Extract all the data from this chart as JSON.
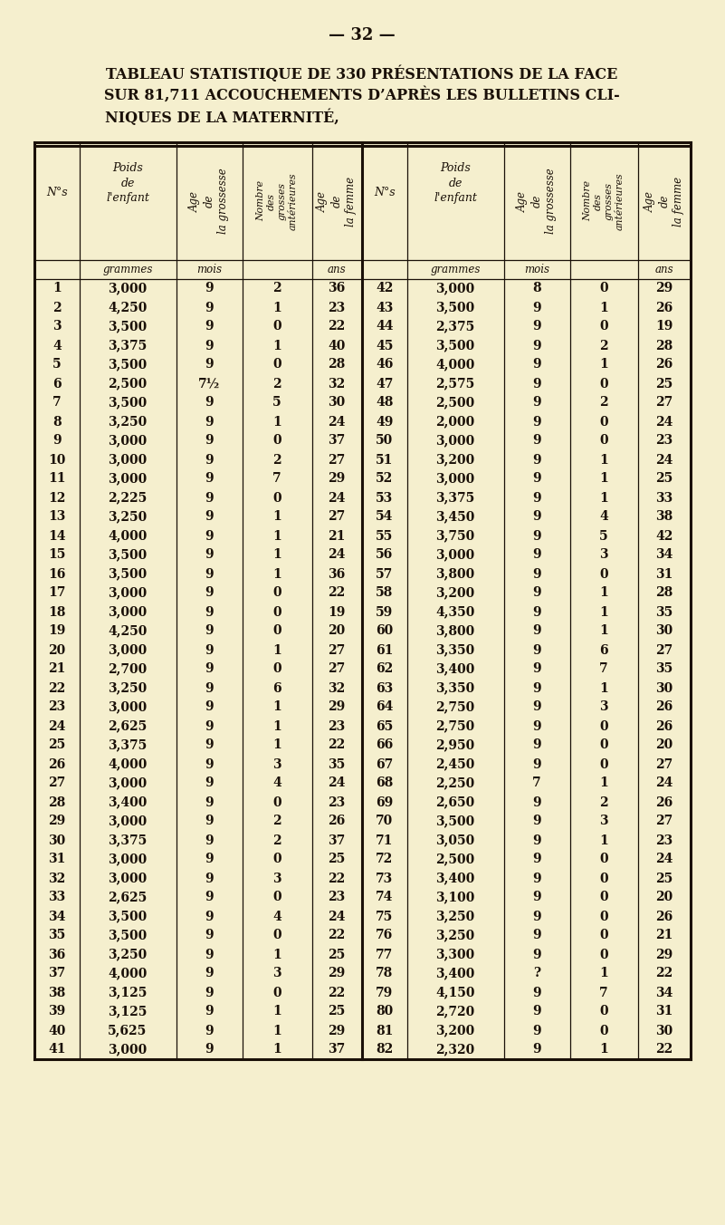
{
  "page_number": "32",
  "title_line1": "TABLEAU STATISTIQUE DE 330 PRÉSENTATIONS DE LA FACE",
  "title_line2": "SUR 81,711 ACCOUCHEMENTS D’APRÈS LES BULLETINS CLI-",
  "title_line3": "NIQUES DE LA MATERNITÉ,",
  "rows": [
    [
      1,
      "3,000",
      "9",
      "2",
      "36",
      42,
      "3,000",
      "8",
      "0",
      "29"
    ],
    [
      2,
      "4,250",
      "9",
      "1",
      "23",
      43,
      "3,500",
      "9",
      "1",
      "26"
    ],
    [
      3,
      "3,500",
      "9",
      "0",
      "22",
      44,
      "2,375",
      "9",
      "0",
      "19"
    ],
    [
      4,
      "3,375",
      "9",
      "1",
      "40",
      45,
      "3,500",
      "9",
      "2",
      "28"
    ],
    [
      5,
      "3,500",
      "9",
      "0",
      "28",
      46,
      "4,000",
      "9",
      "1",
      "26"
    ],
    [
      6,
      "2,500",
      "7½",
      "2",
      "32",
      47,
      "2,575",
      "9",
      "0",
      "25"
    ],
    [
      7,
      "3,500",
      "9",
      "5",
      "30",
      48,
      "2,500",
      "9",
      "2",
      "27"
    ],
    [
      8,
      "3,250",
      "9",
      "1",
      "24",
      49,
      "2,000",
      "9",
      "0",
      "24"
    ],
    [
      9,
      "3,000",
      "9",
      "0",
      "37",
      50,
      "3,000",
      "9",
      "0",
      "23"
    ],
    [
      10,
      "3,000",
      "9",
      "2",
      "27",
      51,
      "3,200",
      "9",
      "1",
      "24"
    ],
    [
      11,
      "3,000",
      "9",
      "7",
      "29",
      52,
      "3,000",
      "9",
      "1",
      "25"
    ],
    [
      12,
      "2,225",
      "9",
      "0",
      "24",
      53,
      "3,375",
      "9",
      "1",
      "33"
    ],
    [
      13,
      "3,250",
      "9",
      "1",
      "27",
      54,
      "3,450",
      "9",
      "4",
      "38"
    ],
    [
      14,
      "4,000",
      "9",
      "1",
      "21",
      55,
      "3,750",
      "9",
      "5",
      "42"
    ],
    [
      15,
      "3,500",
      "9",
      "1",
      "24",
      56,
      "3,000",
      "9",
      "3",
      "34"
    ],
    [
      16,
      "3,500",
      "9",
      "1",
      "36",
      57,
      "3,800",
      "9",
      "0",
      "31"
    ],
    [
      17,
      "3,000",
      "9",
      "0",
      "22",
      58,
      "3,200",
      "9",
      "1",
      "28"
    ],
    [
      18,
      "3,000",
      "9",
      "0",
      "19",
      59,
      "4,350",
      "9",
      "1",
      "35"
    ],
    [
      19,
      "4,250",
      "9",
      "0",
      "20",
      60,
      "3,800",
      "9",
      "1",
      "30"
    ],
    [
      20,
      "3,000",
      "9",
      "1",
      "27",
      61,
      "3,350",
      "9",
      "6",
      "27"
    ],
    [
      21,
      "2,700",
      "9",
      "0",
      "27",
      62,
      "3,400",
      "9",
      "7",
      "35"
    ],
    [
      22,
      "3,250",
      "9",
      "6",
      "32",
      63,
      "3,350",
      "9",
      "1",
      "30"
    ],
    [
      23,
      "3,000",
      "9",
      "1",
      "29",
      64,
      "2,750",
      "9",
      "3",
      "26"
    ],
    [
      24,
      "2,625",
      "9",
      "1",
      "23",
      65,
      "2,750",
      "9",
      "0",
      "26"
    ],
    [
      25,
      "3,375",
      "9",
      "1",
      "22",
      66,
      "2,950",
      "9",
      "0",
      "20"
    ],
    [
      26,
      "4,000",
      "9",
      "3",
      "35",
      67,
      "2,450",
      "9",
      "0",
      "27"
    ],
    [
      27,
      "3,000",
      "9",
      "4",
      "24",
      68,
      "2,250",
      "7",
      "1",
      "24"
    ],
    [
      28,
      "3,400",
      "9",
      "0",
      "23",
      69,
      "2,650",
      "9",
      "2",
      "26"
    ],
    [
      29,
      "3,000",
      "9",
      "2",
      "26",
      70,
      "3,500",
      "9",
      "3",
      "27"
    ],
    [
      30,
      "3,375",
      "9",
      "2",
      "37",
      71,
      "3,050",
      "9",
      "1",
      "23"
    ],
    [
      31,
      "3,000",
      "9",
      "0",
      "25",
      72,
      "2,500",
      "9",
      "0",
      "24"
    ],
    [
      32,
      "3,000",
      "9",
      "3",
      "22",
      73,
      "3,400",
      "9",
      "0",
      "25"
    ],
    [
      33,
      "2,625",
      "9",
      "0",
      "23",
      74,
      "3,100",
      "9",
      "0",
      "20"
    ],
    [
      34,
      "3,500",
      "9",
      "4",
      "24",
      75,
      "3,250",
      "9",
      "0",
      "26"
    ],
    [
      35,
      "3,500",
      "9",
      "0",
      "22",
      76,
      "3,250",
      "9",
      "0",
      "21"
    ],
    [
      36,
      "3,250",
      "9",
      "1",
      "25",
      77,
      "3,300",
      "9",
      "0",
      "29"
    ],
    [
      37,
      "4,000",
      "9",
      "3",
      "29",
      78,
      "3,400",
      "?",
      "1",
      "22"
    ],
    [
      38,
      "3,125",
      "9",
      "0",
      "22",
      79,
      "4,150",
      "9",
      "7",
      "34"
    ],
    [
      39,
      "3,125",
      "9",
      "1",
      "25",
      80,
      "2,720",
      "9",
      "0",
      "31"
    ],
    [
      40,
      "5,625",
      "9",
      "1",
      "29",
      81,
      "3,200",
      "9",
      "0",
      "30"
    ],
    [
      41,
      "3,000",
      "9",
      "1",
      "37",
      82,
      "2,320",
      "9",
      "1",
      "22"
    ]
  ],
  "bg_color": "#f5efce",
  "text_color": "#1a1008",
  "line_color": "#1a1008"
}
